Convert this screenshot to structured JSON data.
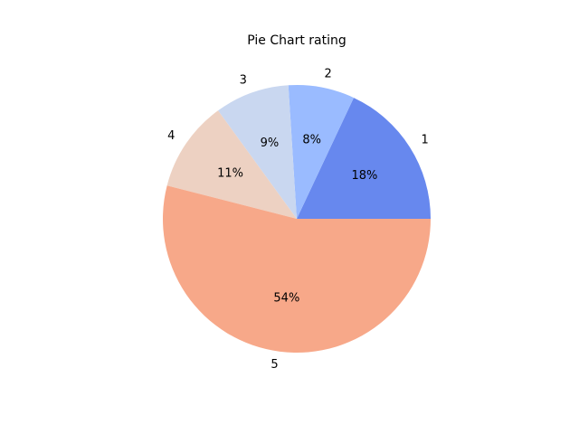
{
  "chart_data": {
    "type": "pie",
    "title": "Pie Chart rating",
    "categories": [
      "1",
      "2",
      "3",
      "4",
      "5"
    ],
    "values": [
      18,
      8,
      9,
      11,
      54
    ],
    "percent_labels": [
      "18%",
      "8%",
      "9%",
      "11%",
      "54%"
    ],
    "colors": [
      "#6788ee",
      "#9abbff",
      "#c9d7f0",
      "#edd1c2",
      "#f7a889"
    ],
    "start_angle_deg": 0,
    "direction": "counterclockwise",
    "legend": "none"
  }
}
